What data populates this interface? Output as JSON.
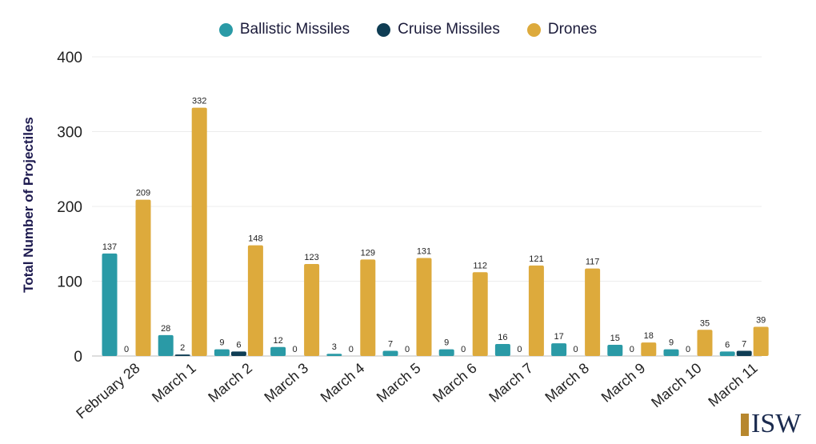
{
  "chart_data": {
    "type": "bar",
    "title": "",
    "xlabel": "",
    "ylabel": "Total Number of Projectiles",
    "ylim": [
      0,
      400
    ],
    "yticks": [
      0,
      100,
      200,
      300,
      400
    ],
    "grid": true,
    "legend_position": "top-center",
    "categories": [
      "February 28",
      "March 1",
      "March 2",
      "March 3",
      "March 4",
      "March 5",
      "March 6",
      "March 7",
      "March 8",
      "March 9",
      "March 10",
      "March 11"
    ],
    "series": [
      {
        "name": "Ballistic Missiles",
        "color": "#2a9aa6",
        "values": [
          137,
          28,
          9,
          12,
          3,
          7,
          9,
          16,
          17,
          15,
          9,
          6
        ]
      },
      {
        "name": "Cruise Missiles",
        "color": "#0f3d54",
        "values": [
          0,
          2,
          6,
          0,
          0,
          0,
          0,
          0,
          0,
          0,
          0,
          7
        ]
      },
      {
        "name": "Drones",
        "color": "#ddaa3c",
        "values": [
          209,
          332,
          148,
          123,
          129,
          131,
          112,
          121,
          117,
          18,
          35,
          39
        ]
      }
    ]
  },
  "logo": {
    "text": "ISW"
  }
}
